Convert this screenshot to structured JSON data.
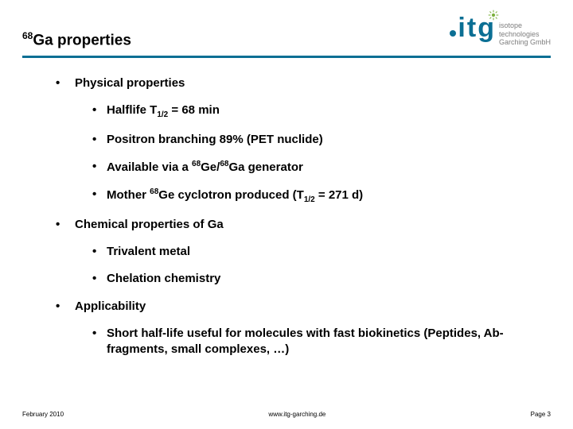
{
  "colors": {
    "rule": "#0b6f94",
    "logo_primary": "#0b6f94",
    "logo_accent": "#7bb03c",
    "logo_text": "#7e7e7e",
    "background": "#ffffff",
    "text": "#000000"
  },
  "typography": {
    "title_fontsize": 19,
    "body_fontsize": 15,
    "footer_fontsize": 8,
    "logo_mark_fontsize": 34,
    "logo_text_fontsize": 9
  },
  "header": {
    "title_sup": "68",
    "title_rest": "Ga properties",
    "logo_letters": "itg",
    "logo_line1": "isotope",
    "logo_line2": "technologies",
    "logo_line3": "Garching GmbH"
  },
  "sections": [
    {
      "heading": "Physical properties",
      "items": [
        {
          "html": "Halflife T<sub>1/2</sub> = 68 min"
        },
        {
          "html": "Positron branching 89% (PET nuclide)"
        },
        {
          "html": "Available via a <sup>68</sup>Ge/<sup>68</sup>Ga generator"
        },
        {
          "html": "Mother <sup>68</sup>Ge cyclotron produced (T<sub>1/2</sub> = 271 d)"
        }
      ]
    },
    {
      "heading": "Chemical properties of Ga",
      "items": [
        {
          "html": "Trivalent metal"
        },
        {
          "html": "Chelation chemistry"
        }
      ]
    },
    {
      "heading": "Applicability",
      "items": [
        {
          "html": "Short half-life useful for molecules with fast biokinetics (Peptides, Ab-fragments, small complexes, …)"
        }
      ]
    }
  ],
  "footer": {
    "left": "February 2010",
    "center": "www.itg-garching.de",
    "right": "Page 3"
  }
}
